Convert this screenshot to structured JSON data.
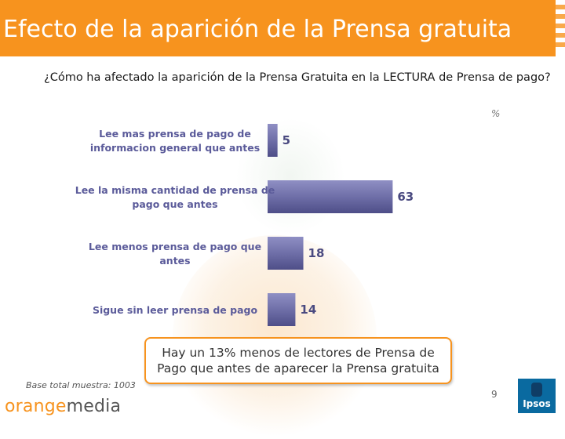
{
  "header": {
    "title": "Efecto de la aparición de la Prensa gratuita",
    "color": "#f7931e"
  },
  "question": "¿Cómo ha afectado la aparición de la Prensa Gratuita en la LECTURA de Prensa de pago?",
  "unit_label": "%",
  "chart_data": {
    "type": "bar",
    "orientation": "horizontal",
    "title": "¿Cómo ha afectado la aparición de la Prensa Gratuita en la LECTURA de Prensa de pago?",
    "unit": "%",
    "categories": [
      [
        "Lee mas prensa de pago de",
        "informacion general que antes"
      ],
      [
        "Lee la misma cantidad de prensa de",
        "pago que antes"
      ],
      [
        "Lee menos prensa de pago que",
        "antes"
      ],
      [
        "Sigue sin leer prensa de pago"
      ]
    ],
    "values": [
      5,
      63,
      18,
      14
    ],
    "xlim": [
      0,
      100
    ],
    "bar_color": "#6f6fa8"
  },
  "callout": {
    "line1": "Hay un 13% menos de lectores de Prensa de",
    "line2": "Pago que antes de aparecer la Prensa gratuita"
  },
  "footer": {
    "base_text": "Base total muestra: 1003",
    "brand_part1": "orange",
    "brand_part2": "media",
    "page_number": "9",
    "logo_text": "Ipsos"
  }
}
